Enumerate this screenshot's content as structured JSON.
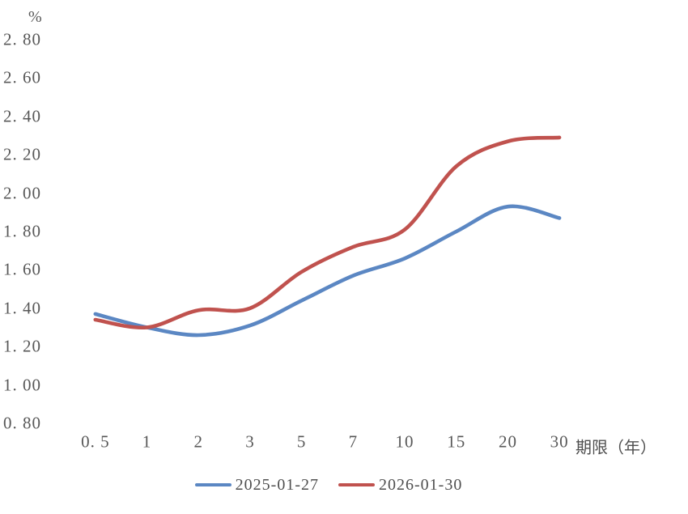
{
  "chart_data": {
    "type": "line",
    "smooth": true,
    "grid": false,
    "background_color": "#ffffff",
    "text_color": "#585858",
    "y_unit_label": "%",
    "x_axis_title": "期限（年）",
    "categories": [
      0.5,
      1,
      2,
      3,
      5,
      7,
      10,
      15,
      20,
      30
    ],
    "x_tick_labels": [
      "0. 5",
      "1",
      "2",
      "3",
      "5",
      "7",
      "10",
      "15",
      "20",
      "30"
    ],
    "ylim": [
      0.8,
      2.8
    ],
    "y_tick_step": 0.2,
    "y_tick_labels": [
      "2. 80",
      "2. 60",
      "2. 40",
      "2. 20",
      "2. 00",
      "1. 80",
      "1. 60",
      "1. 40",
      "1. 20",
      "1. 00",
      "0. 80"
    ],
    "legend_position": "bottom",
    "series": [
      {
        "name": "2025-01-27",
        "color": "#5b87c3",
        "values": [
          1.37,
          1.3,
          1.26,
          1.31,
          1.44,
          1.57,
          1.66,
          1.8,
          1.93,
          1.87
        ]
      },
      {
        "name": "2026-01-30",
        "color": "#c0524e",
        "values": [
          1.34,
          1.3,
          1.39,
          1.4,
          1.59,
          1.72,
          1.81,
          2.14,
          2.27,
          2.29
        ]
      }
    ]
  }
}
